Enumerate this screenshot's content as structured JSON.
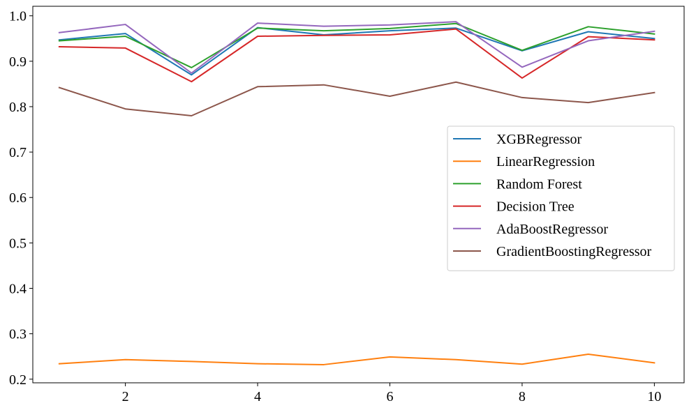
{
  "chart_data": {
    "type": "line",
    "title": "",
    "xlabel": "",
    "ylabel": "",
    "x": [
      1,
      2,
      3,
      4,
      5,
      6,
      7,
      8,
      9,
      10
    ],
    "xlim": [
      0.6,
      10.45
    ],
    "ylim": [
      0.192,
      1.021
    ],
    "xticks": [
      2,
      4,
      6,
      8,
      10
    ],
    "yticks": [
      0.2,
      0.3,
      0.4,
      0.5,
      0.6,
      0.7,
      0.8,
      0.9,
      1.0
    ],
    "xtick_labels": [
      "2",
      "4",
      "6",
      "8",
      "10"
    ],
    "ytick_labels": [
      "0.2",
      "0.3",
      "0.4",
      "0.5",
      "0.6",
      "0.7",
      "0.8",
      "0.9",
      "1.0"
    ],
    "grid": false,
    "legend_position": "center-right",
    "series": [
      {
        "name": "XGBRegressor",
        "color": "#1f77b4",
        "values": [
          0.947,
          0.961,
          0.87,
          0.974,
          0.958,
          0.967,
          0.973,
          0.923,
          0.965,
          0.95
        ]
      },
      {
        "name": "LinearRegression",
        "color": "#ff7f0e",
        "values": [
          0.234,
          0.243,
          0.239,
          0.234,
          0.232,
          0.249,
          0.243,
          0.233,
          0.255,
          0.236
        ]
      },
      {
        "name": "Random Forest",
        "color": "#2ca02c",
        "values": [
          0.945,
          0.955,
          0.886,
          0.973,
          0.967,
          0.972,
          0.983,
          0.924,
          0.976,
          0.96
        ]
      },
      {
        "name": "Decision Tree",
        "color": "#d62728",
        "values": [
          0.932,
          0.929,
          0.855,
          0.955,
          0.957,
          0.958,
          0.971,
          0.863,
          0.954,
          0.947
        ]
      },
      {
        "name": "AdaBoostRegressor",
        "color": "#9467bd",
        "values": [
          0.963,
          0.981,
          0.874,
          0.984,
          0.977,
          0.98,
          0.987,
          0.887,
          0.945,
          0.966
        ]
      },
      {
        "name": "GradientBoostingRegressor",
        "color": "#8c564b",
        "values": [
          0.842,
          0.795,
          0.78,
          0.844,
          0.848,
          0.823,
          0.854,
          0.82,
          0.809,
          0.831
        ]
      }
    ]
  }
}
